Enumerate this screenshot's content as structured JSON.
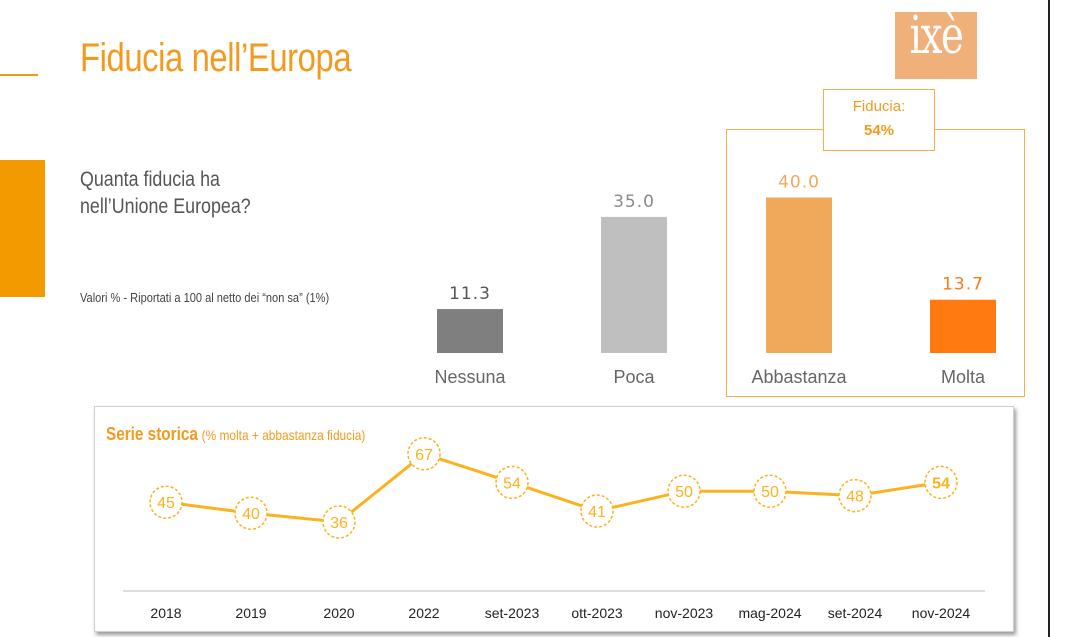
{
  "title": "Fiducia nell’Europa",
  "logo_text": "ixè",
  "question": "Quanta fiducia ha\nnell’Unione Europea?",
  "note": "Valori % - Riportati a 100 al netto dei “non sa” (1%)",
  "fiducia_label": "Fiducia:",
  "fiducia_value": "54%",
  "series_title": "Serie storica",
  "series_subtitle": "(% molta + abbastanza fiducia)",
  "colors": {
    "accent": "#f39a1e",
    "bar_nessuna": "#7f7f7f",
    "bar_poca": "#bfbfbf",
    "bar_abbastanza": "#f0a95a",
    "bar_molta": "#ff7a11",
    "line": "#fbb21e"
  },
  "chart_data": [
    {
      "type": "bar",
      "categories": [
        "Nessuna",
        "Poca",
        "Abbastanza",
        "Molta"
      ],
      "values": [
        11.3,
        35.0,
        40.0,
        13.7
      ],
      "value_labels": [
        "11.3",
        "35.0",
        "40.0",
        "13.7"
      ],
      "bar_colors": [
        "#7f7f7f",
        "#bfbfbf",
        "#f0a95a",
        "#ff7a11"
      ],
      "label_colors": [
        "#555555",
        "#8a8a8a",
        "#f0a95a",
        "#ff7a11"
      ],
      "ylim": [
        0,
        45
      ],
      "grid": false,
      "legend": "none"
    },
    {
      "type": "line",
      "title": "Serie storica",
      "subtitle": "(% molta + abbastanza fiducia)",
      "x": [
        "2018",
        "2019",
        "2020",
        "2022",
        "set-2023",
        "ott-2023",
        "nov-2023",
        "mag-2024",
        "set-2024",
        "nov-2024"
      ],
      "values": [
        45,
        40,
        36,
        67,
        54,
        41,
        50,
        50,
        48,
        54
      ],
      "ylim": [
        20,
        80
      ],
      "grid": false,
      "legend": "none"
    }
  ]
}
